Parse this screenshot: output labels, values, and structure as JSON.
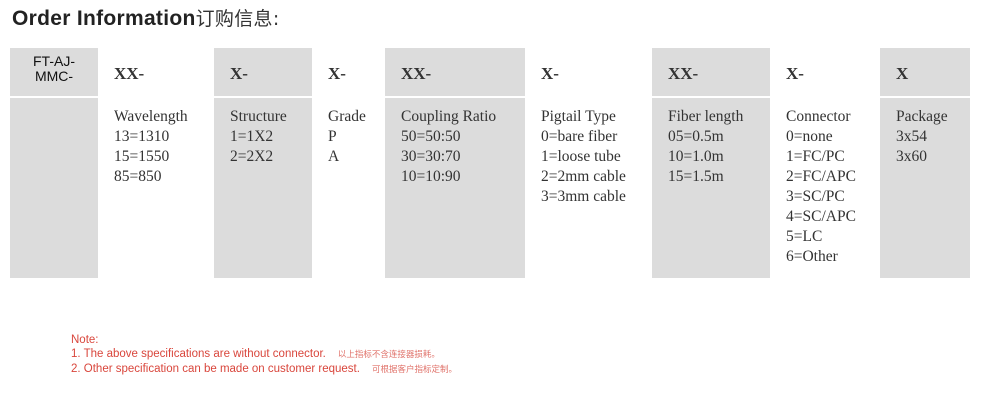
{
  "title": {
    "en": "Order Information",
    "cn": "订购信息:"
  },
  "prefix": [
    "FT-AJ-",
    "MMC-"
  ],
  "columns": [
    {
      "code": "XX-",
      "lines": [
        "Wavelength",
        "13=1310",
        "15=1550",
        "85=850"
      ]
    },
    {
      "code": "X-",
      "lines": [
        "Structure",
        "1=1X2",
        "2=2X2"
      ]
    },
    {
      "code": "X-",
      "lines": [
        "Grade",
        "P",
        "A"
      ]
    },
    {
      "code": "XX-",
      "lines": [
        "Coupling Ratio",
        "50=50:50",
        "30=30:70",
        "10=10:90"
      ]
    },
    {
      "code": "X-",
      "lines": [
        "Pigtail Type",
        "0=bare fiber",
        "1=loose tube",
        "2=2mm cable",
        "3=3mm cable"
      ]
    },
    {
      "code": "XX-",
      "lines": [
        "Fiber length",
        "05=0.5m",
        "10=1.0m",
        "15=1.5m"
      ]
    },
    {
      "code": "X-",
      "lines": [
        "Connector",
        "0=none",
        "1=FC/PC",
        "2=FC/APC",
        "3=SC/PC",
        "4=SC/APC",
        "5=LC",
        "6=Other"
      ]
    },
    {
      "code": "X",
      "lines": [
        "Package",
        "3x54",
        "3x60"
      ]
    }
  ],
  "notes": {
    "heading": "Note:",
    "items": [
      {
        "en": "1. The above specifications are without connector.",
        "cn": "以上指标不含连接器损耗。"
      },
      {
        "en": "2. Other specification can be made on customer request.",
        "cn": "可根据客户指标定制。"
      }
    ]
  },
  "colors": {
    "cell_gray": "#dcdcdc",
    "note_red": "#d9463c"
  }
}
